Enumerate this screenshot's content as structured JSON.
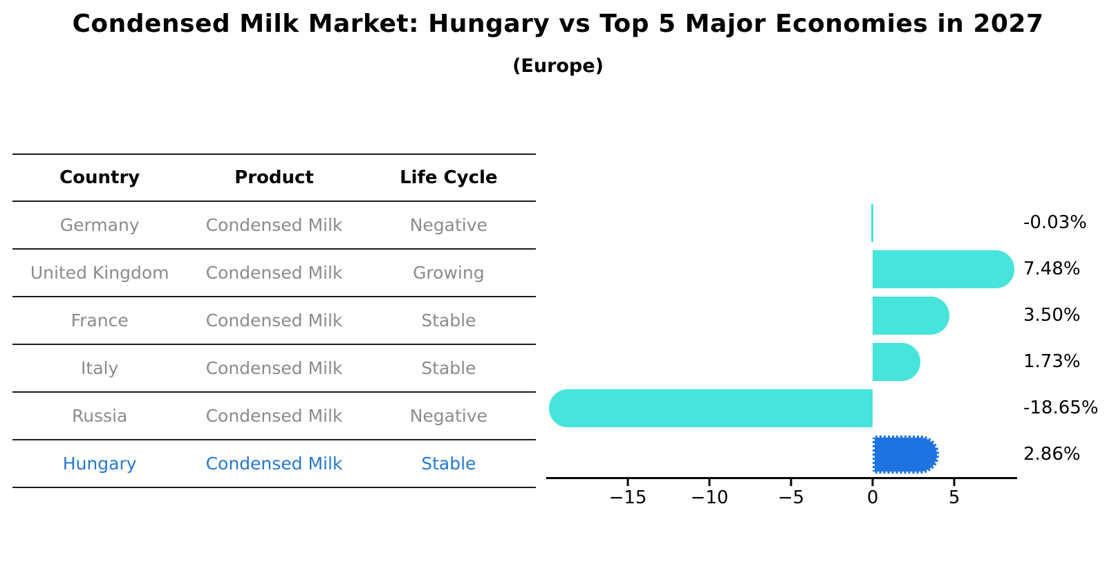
{
  "title": "Condensed Milk Market: Hungary vs Top 5 Major Economies in 2027",
  "subtitle": "(Europe)",
  "table": {
    "headers": [
      "Country",
      "Product",
      "Life Cycle"
    ],
    "rows": [
      {
        "country": "Germany",
        "product": "Condensed Milk",
        "life_cycle": "Negative",
        "highlight": false
      },
      {
        "country": "United Kingdom",
        "product": "Condensed Milk",
        "life_cycle": "Growing",
        "highlight": false
      },
      {
        "country": "France",
        "product": "Condensed Milk",
        "life_cycle": "Stable",
        "highlight": false
      },
      {
        "country": "Italy",
        "product": "Condensed Milk",
        "life_cycle": "Stable",
        "highlight": false
      },
      {
        "country": "Russia",
        "product": "Condensed Milk",
        "life_cycle": "Negative",
        "highlight": false
      },
      {
        "country": "Hungary",
        "product": "Condensed Milk",
        "life_cycle": "Stable",
        "highlight": true
      }
    ]
  },
  "chart_data": {
    "type": "bar",
    "orientation": "horizontal",
    "title": "Condensed Milk Market: Hungary vs Top 5 Major Economies in 2027",
    "subtitle": "(Europe)",
    "categories": [
      "Germany",
      "United Kingdom",
      "France",
      "Italy",
      "Russia",
      "Hungary"
    ],
    "values": [
      -0.03,
      7.48,
      3.5,
      1.73,
      -18.65,
      2.86
    ],
    "value_labels": [
      "-0.03%",
      "7.48%",
      "3.50%",
      "1.73%",
      "-18.65%",
      "2.86%"
    ],
    "highlight_index": 5,
    "xlim": [
      -20,
      8.85
    ],
    "x_ticks": [
      -15,
      -10,
      -5,
      0,
      5
    ],
    "x_tick_labels": [
      "−15",
      "−10",
      "−5",
      "0",
      "5"
    ],
    "xlabel": "",
    "ylabel": "",
    "grid": false,
    "legend": false,
    "bar_color": "#46e4da",
    "highlight_color": "#1e73e0",
    "highlight_text_color": "#2778cf"
  }
}
